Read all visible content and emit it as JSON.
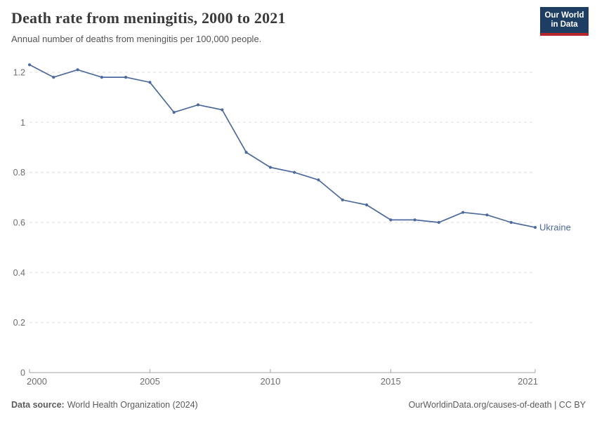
{
  "logo": {
    "line1": "Our World",
    "line2": "in Data"
  },
  "chart_data": {
    "type": "line",
    "title": "Death rate from meningitis, 2000 to 2021",
    "subtitle": "Annual number of deaths from meningitis per 100,000 people.",
    "x": [
      2000,
      2001,
      2002,
      2003,
      2004,
      2005,
      2006,
      2007,
      2008,
      2009,
      2010,
      2011,
      2012,
      2013,
      2014,
      2015,
      2016,
      2017,
      2018,
      2019,
      2020,
      2021
    ],
    "series": [
      {
        "name": "Ukraine",
        "values": [
          1.23,
          1.18,
          1.21,
          1.18,
          1.18,
          1.16,
          1.04,
          1.07,
          1.05,
          0.88,
          0.82,
          0.8,
          0.77,
          0.69,
          0.67,
          0.61,
          0.61,
          0.6,
          0.64,
          0.63,
          0.6,
          0.58
        ]
      }
    ],
    "xlim": [
      2000,
      2021
    ],
    "ylim": [
      0,
      1.2
    ],
    "yticks": [
      0,
      0.2,
      0.4,
      0.6,
      0.8,
      1,
      1.2
    ],
    "ytick_labels": [
      "0",
      "0.2",
      "0.4",
      "0.6",
      "0.8",
      "1",
      "1.2"
    ],
    "xticks": [
      2000,
      2005,
      2010,
      2015,
      2021
    ],
    "grid": "horizontal-dashed",
    "legend_position": "end-of-line-label",
    "colors": {
      "line": "#4c6a9c",
      "grid": "#dedede",
      "axis": "#a3a3a3",
      "tick_text": "#6e6e6e"
    }
  },
  "footer": {
    "source_label": "Data source:",
    "source_value": "World Health Organization (2024)",
    "credit": "OurWorldinData.org/causes-of-death | CC BY"
  }
}
